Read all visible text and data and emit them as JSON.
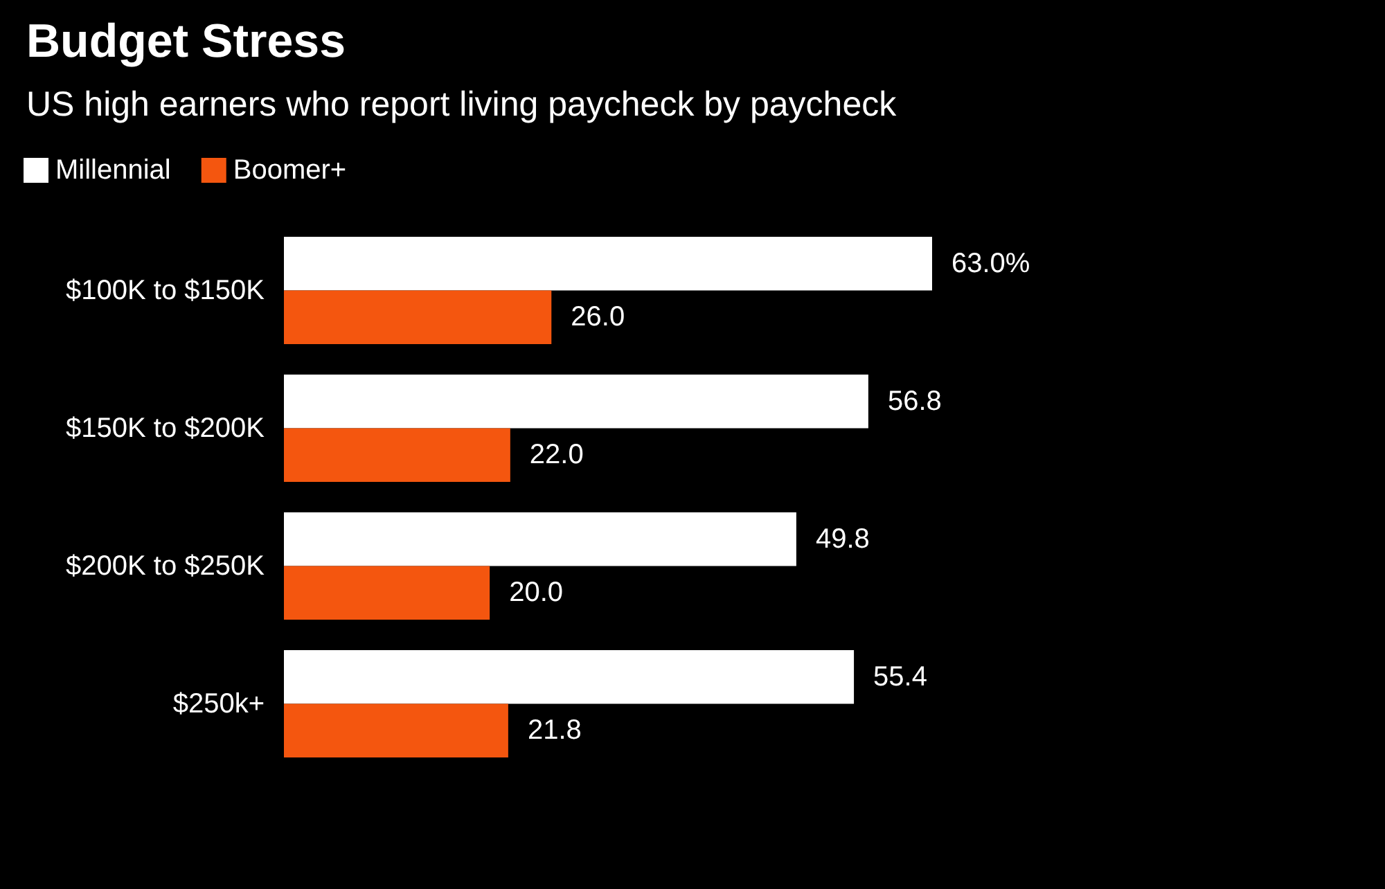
{
  "chart_data": {
    "type": "bar",
    "orientation": "horizontal",
    "title": "Budget Stress",
    "subtitle": "US high earners who report living paycheck by paycheck",
    "categories": [
      "$100K to $150K",
      "$150K to $200K",
      "$200K to $250K",
      "$250k+"
    ],
    "series": [
      {
        "name": "Millennial",
        "color": "#ffffff",
        "values": [
          63.0,
          56.8,
          49.8,
          55.4
        ],
        "value_labels": [
          "63.0%",
          "56.8",
          "49.8",
          "55.4"
        ]
      },
      {
        "name": "Boomer+",
        "color": "#f4560f",
        "values": [
          26.0,
          22.0,
          20.0,
          21.8
        ],
        "value_labels": [
          "26.0",
          "22.0",
          "20.0",
          "21.8"
        ]
      }
    ],
    "legend": "top left",
    "grid": false
  }
}
